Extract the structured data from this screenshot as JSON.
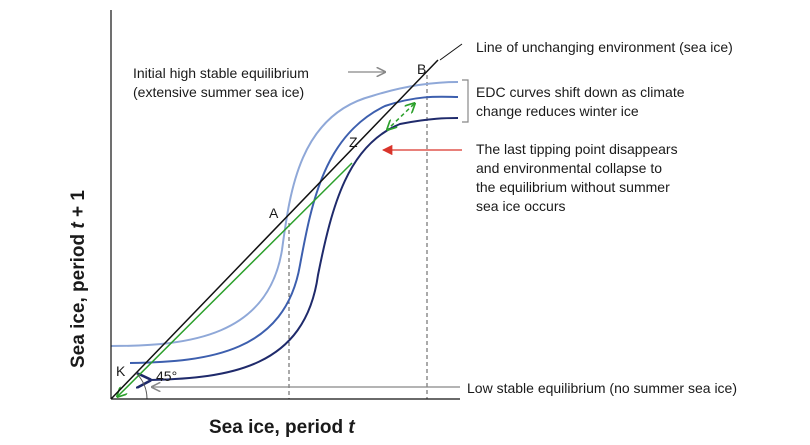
{
  "axes": {
    "x_title": "Sea ice, period ",
    "x_title_var": "t",
    "y_title": "Sea ice, period ",
    "y_title_var": "t",
    "y_title_suffix": " + 1",
    "angle_label": "45°"
  },
  "points": {
    "A": "A",
    "B": "B",
    "Z": "Z",
    "K": "K"
  },
  "annotations": {
    "unchanging_line": "Line of unchanging environment (sea ice)",
    "initial_eq_line1": "Initial high stable equilibrium",
    "initial_eq_line2": "(extensive summer sea ice)",
    "edc_shift_line1": "EDC curves shift down as climate",
    "edc_shift_line2": "change reduces winter ice",
    "tipping_line1": "The last tipping point disappears",
    "tipping_line2": "and environmental collapse to",
    "tipping_line3": "the equilibrium without summer",
    "tipping_line4": "sea ice occurs",
    "low_eq": "Low stable equilibrium (no summer sea ice)"
  },
  "colors": {
    "curve_light": "#8fa8d8",
    "curve_medium": "#3d5fae",
    "curve_dark": "#1f2a6b",
    "diagonal": "#111111",
    "path_arrow": "#2ca02c",
    "collapse_arrow": "#d9342b",
    "guide": "#555555"
  }
}
